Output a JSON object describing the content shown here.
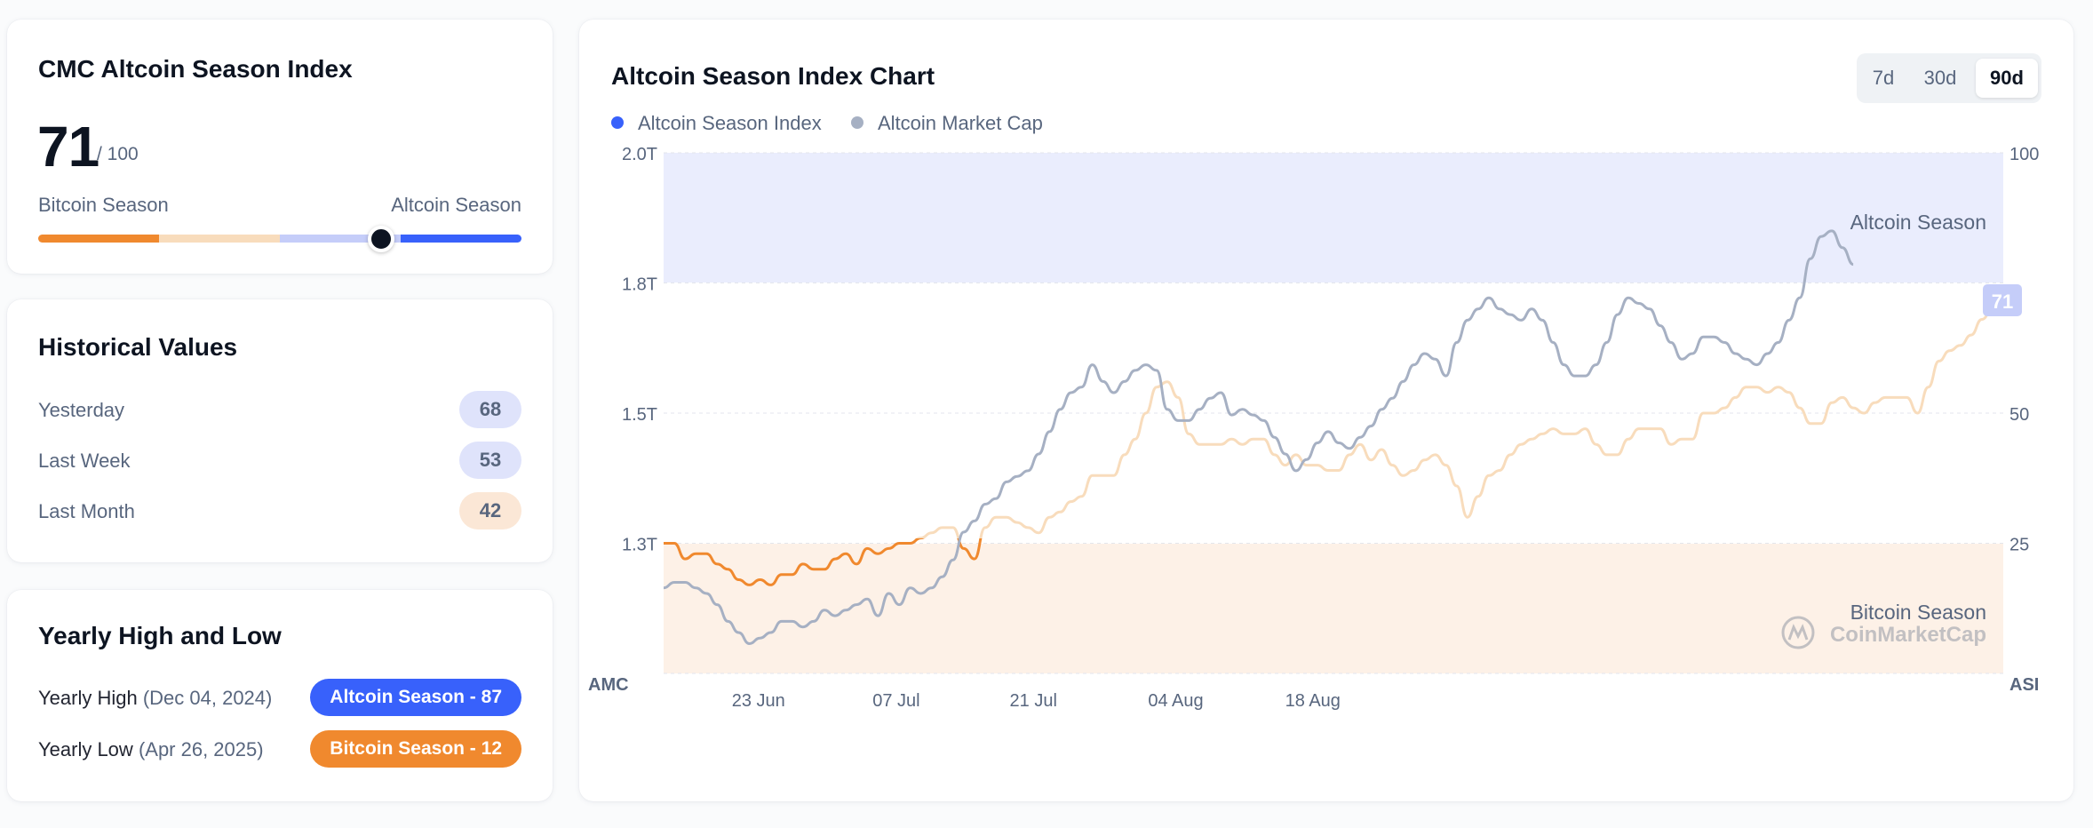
{
  "index_card": {
    "title": "CMC Altcoin Season Index",
    "value": "71",
    "out_of": "/ 100",
    "left_label": "Bitcoin Season",
    "right_label": "Altcoin Season",
    "slider_value": 71
  },
  "historical": {
    "title": "Historical Values",
    "rows": [
      {
        "label": "Yesterday",
        "value": "68"
      },
      {
        "label": "Last Week",
        "value": "53"
      },
      {
        "label": "Last Month",
        "value": "42"
      }
    ]
  },
  "yearly": {
    "title": "Yearly High and Low",
    "high": {
      "label": "Yearly High",
      "date": "(Dec 04, 2024)",
      "badge": "Altcoin Season - 87"
    },
    "low": {
      "label": "Yearly Low",
      "date": "(Apr 26, 2025)",
      "badge": "Bitcoin Season - 12"
    }
  },
  "chart_card": {
    "title": "Altcoin Season Index Chart",
    "tabs": [
      "7d",
      "30d",
      "90d"
    ],
    "active_tab": "90d",
    "legend": [
      "Altcoin Season Index",
      "Altcoin Market Cap"
    ],
    "watermark": "CoinMarketCap"
  },
  "colors": {
    "altcoin_blue": "#3861fb",
    "bitcoin_orange": "#f0892e",
    "market_cap_gray": "#a6b0c3"
  },
  "chart_data": {
    "type": "line",
    "left_axis_label": "AMC",
    "right_axis_label": "ASI",
    "left_ticks": [
      "2.0T",
      "1.8T",
      "1.5T",
      "1.3T"
    ],
    "right_ticks": [
      "100",
      "50",
      "25"
    ],
    "x_ticks": [
      "23 Jun",
      "07 Jul",
      "21 Jul",
      "04 Aug",
      "18 Aug"
    ],
    "ylim_index": [
      0,
      100
    ],
    "zone_labels": {
      "top": "Altcoin Season",
      "bottom": "Bitcoin Season"
    },
    "end_badge": "71",
    "series": [
      {
        "name": "Altcoin Season Index",
        "values": [
          25,
          25,
          22,
          23,
          23,
          21,
          20,
          18,
          17,
          18,
          17,
          19,
          19,
          21,
          20,
          20,
          22,
          23,
          21,
          24,
          23,
          24,
          25,
          25,
          26,
          27,
          28,
          28,
          24,
          22,
          28,
          30,
          30,
          29,
          28,
          27,
          30,
          31,
          33,
          34,
          38,
          38,
          38,
          42,
          45,
          50,
          55,
          56,
          53,
          46,
          44,
          44,
          44,
          45,
          44,
          45,
          45,
          42,
          40,
          42,
          40,
          40,
          39,
          39,
          42,
          44,
          41,
          43,
          40,
          38,
          39,
          41,
          42,
          40,
          36,
          30,
          34,
          38,
          39,
          42,
          44,
          45,
          46,
          47,
          46,
          46,
          47,
          44,
          42,
          42,
          45,
          47,
          47,
          47,
          44,
          45,
          45,
          50,
          50,
          51,
          53,
          55,
          55,
          54,
          55,
          54,
          51,
          48,
          48,
          52,
          53,
          51,
          50,
          52,
          53,
          53,
          53,
          50,
          55,
          60,
          62,
          63,
          65,
          68,
          70,
          71
        ]
      },
      {
        "name": "Altcoin Market Cap",
        "values": [
          1.22,
          1.23,
          1.23,
          1.22,
          1.21,
          1.19,
          1.16,
          1.14,
          1.12,
          1.13,
          1.14,
          1.16,
          1.16,
          1.15,
          1.16,
          1.18,
          1.17,
          1.18,
          1.19,
          1.2,
          1.17,
          1.21,
          1.19,
          1.22,
          1.21,
          1.22,
          1.24,
          1.27,
          1.32,
          1.34,
          1.37,
          1.38,
          1.41,
          1.42,
          1.43,
          1.46,
          1.5,
          1.54,
          1.57,
          1.58,
          1.62,
          1.59,
          1.57,
          1.59,
          1.61,
          1.62,
          1.61,
          1.54,
          1.52,
          1.52,
          1.54,
          1.56,
          1.57,
          1.53,
          1.54,
          1.53,
          1.52,
          1.49,
          1.46,
          1.43,
          1.45,
          1.48,
          1.5,
          1.48,
          1.47,
          1.49,
          1.51,
          1.54,
          1.56,
          1.59,
          1.62,
          1.64,
          1.63,
          1.6,
          1.66,
          1.7,
          1.72,
          1.74,
          1.72,
          1.71,
          1.7,
          1.72,
          1.7,
          1.66,
          1.62,
          1.6,
          1.6,
          1.62,
          1.66,
          1.71,
          1.74,
          1.73,
          1.72,
          1.69,
          1.66,
          1.63,
          1.64,
          1.67,
          1.67,
          1.66,
          1.64,
          1.63,
          1.62,
          1.64,
          1.66,
          1.7,
          1.74,
          1.81,
          1.85,
          1.86,
          1.83,
          1.8
        ]
      }
    ]
  }
}
